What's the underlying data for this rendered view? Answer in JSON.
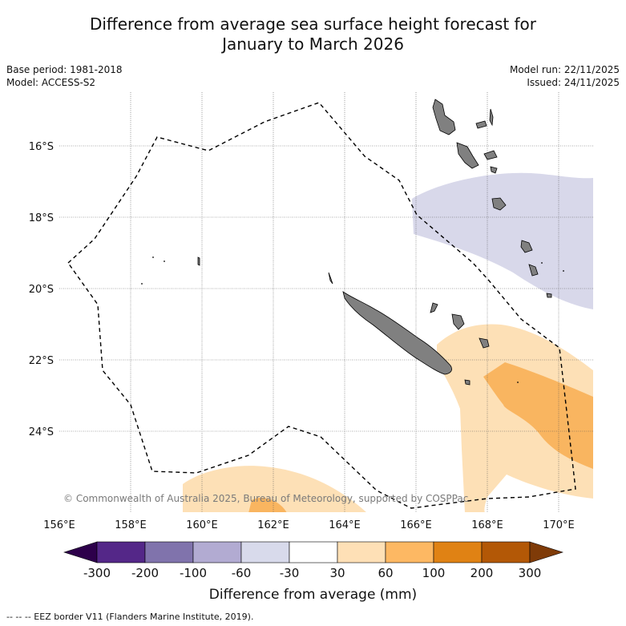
{
  "header": {
    "title_line1": "Difference from average sea surface height forecast for",
    "title_line2": "January to March 2026"
  },
  "meta_left": {
    "base_period": "Base period: 1981-2018",
    "model": "Model: ACCESS-S2"
  },
  "meta_right": {
    "model_run": "Model run: 22/11/2025",
    "issued": "Issued: 24/11/2025"
  },
  "map": {
    "lat_labels": [
      "16°S",
      "18°S",
      "20°S",
      "22°S",
      "24°S"
    ],
    "lon_labels": [
      "156°E",
      "158°E",
      "160°E",
      "162°E",
      "164°E",
      "166°E",
      "168°E",
      "170°E"
    ],
    "copyright": "© Commonwealth of Australia 2025, Bureau of Meteorology, supported by COSPPac",
    "colors": {
      "land": "#808080",
      "light_purple": "#d8d8ea",
      "light_orange": "#fde0b6",
      "mid_orange": "#f9b560"
    }
  },
  "colorbar": {
    "tick_labels": [
      "-300",
      "-200",
      "-100",
      "-60",
      "-30",
      "30",
      "60",
      "100",
      "200",
      "300"
    ],
    "colors": [
      "#2d004b",
      "#542788",
      "#8073ac",
      "#b2abd2",
      "#d8daeb",
      "#ffffff",
      "#fee0b6",
      "#fdb863",
      "#e08214",
      "#b35806",
      "#7f3b08"
    ],
    "label": "Difference from average (mm)"
  },
  "footer": {
    "legend_text": "-- -- -- EEZ border V11 (Flanders Marine Institute, 2019)."
  }
}
